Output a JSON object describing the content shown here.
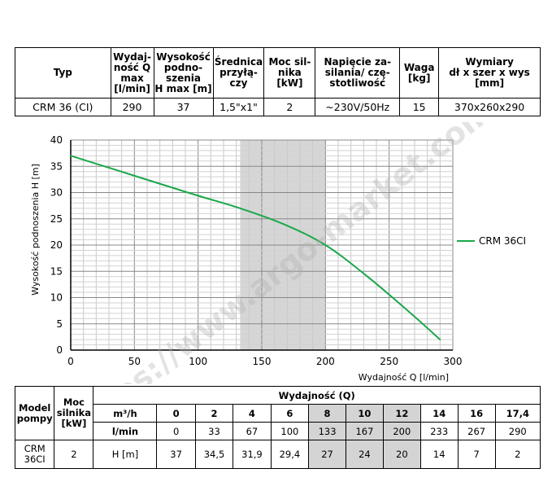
{
  "spec_table": {
    "headers": [
      "Typ",
      "Wydaj-\nność Q\nmax\n[l/min]",
      "Wysokość\npodno-\nszenia\nH max [m]",
      "Średnica\nprzyłą-\nczy",
      "Moc sil-\nnika\n[kW]",
      "Napięcie za-\nsilania/ czę-\nstotliwość",
      "Waga\n[kg]",
      "Wymiary\ndł x szer x wys\n[mm]"
    ],
    "row": [
      "CRM 36 (CI)",
      "290",
      "37",
      "1,5\"x1\"",
      "2",
      "~230V/50Hz",
      "15",
      "370x260x290"
    ]
  },
  "chart_data": {
    "type": "line",
    "xlabel": "Wydajność Q [l/min]",
    "ylabel": "Wysokość podnoszenia H [m]",
    "xlim": [
      0,
      300
    ],
    "ylim": [
      0,
      40
    ],
    "xticks": [
      "0",
      "50",
      "100",
      "150",
      "200",
      "250",
      "300"
    ],
    "yticks": [
      "0",
      "5",
      "10",
      "15",
      "20",
      "25",
      "30",
      "35",
      "40"
    ],
    "grid": true,
    "legend_position": "right",
    "shaded_range_x": [
      133,
      200
    ],
    "series": [
      {
        "name": "CRM 36CI",
        "color": "#1aa84a",
        "x": [
          0,
          33,
          67,
          100,
          133,
          167,
          200,
          233,
          267,
          290
        ],
        "y": [
          37,
          34.5,
          31.9,
          29.4,
          27,
          24,
          20,
          14,
          7,
          2
        ]
      }
    ],
    "watermark": "https://www.argo-market.com"
  },
  "data_table": {
    "model_header": "Model\npompy",
    "power_header": "Moc\nsilnika\n[kW]",
    "flow_header": "Wydajność (Q)",
    "unit_m3h": "m³/h",
    "unit_lmin": "l/min",
    "unit_h": "H [m]",
    "m3h": [
      "0",
      "2",
      "4",
      "6",
      "8",
      "10",
      "12",
      "14",
      "16",
      "17,4"
    ],
    "lmin": [
      "0",
      "33",
      "67",
      "100",
      "133",
      "167",
      "200",
      "233",
      "267",
      "290"
    ],
    "h": [
      "37",
      "34,5",
      "31,9",
      "29,4",
      "27",
      "24",
      "20",
      "14",
      "7",
      "2"
    ],
    "model": "CRM\n36CI",
    "power": "2"
  }
}
